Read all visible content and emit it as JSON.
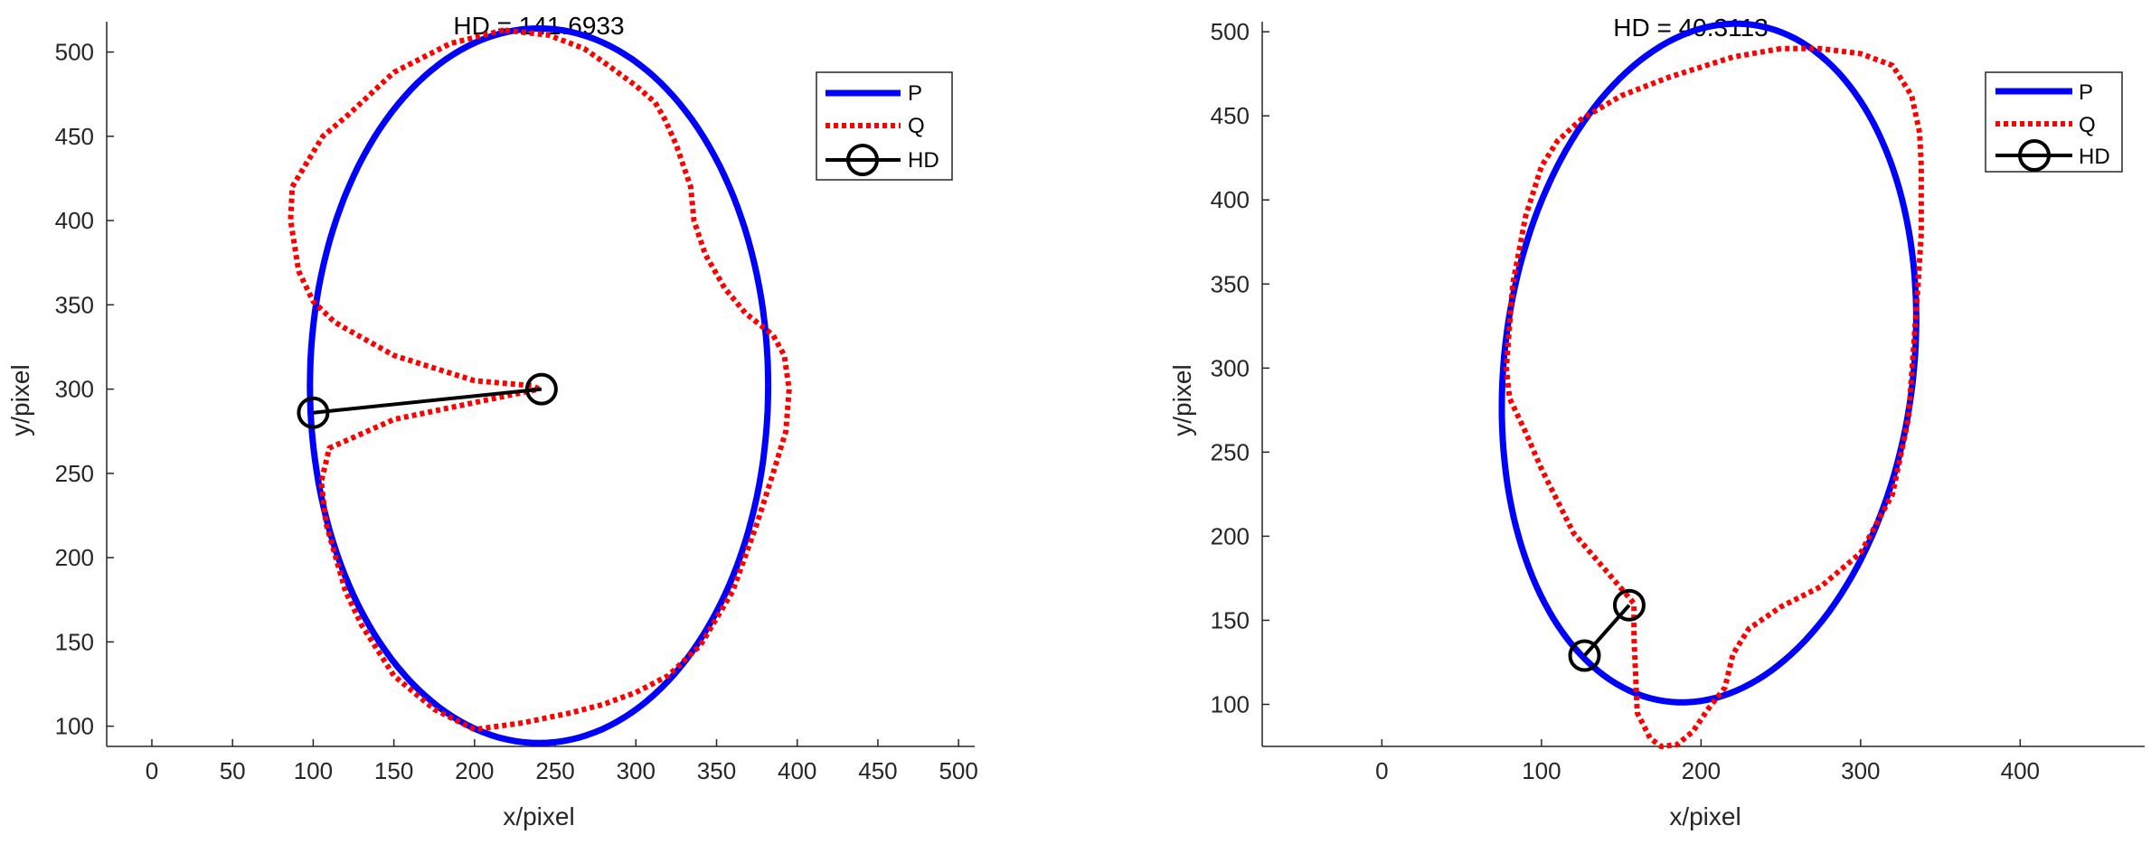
{
  "colors": {
    "P": "#0000ff",
    "Q": "#ff0000",
    "HD": "#000000",
    "axis": "#262626"
  },
  "chart_data": [
    {
      "type": "line",
      "title": "HD = 141.6933",
      "xlabel": "x/pixel",
      "ylabel": "y/pixel",
      "xlim": [
        -28,
        510
      ],
      "ylim": [
        88,
        518
      ],
      "xticks": [
        0,
        50,
        100,
        150,
        200,
        250,
        300,
        350,
        400,
        450,
        500
      ],
      "yticks": [
        100,
        150,
        200,
        250,
        300,
        350,
        400,
        450,
        500
      ],
      "legend": {
        "position": "top-right",
        "entries": [
          "P",
          "Q",
          "HD"
        ]
      },
      "series": [
        {
          "name": "P",
          "style": "solid",
          "ellipse": {
            "cx": 240,
            "cy": 302,
            "rx": 142,
            "ry": 212,
            "rotation_deg": 0
          }
        },
        {
          "name": "Q",
          "style": "dotted",
          "x": [
            218,
            185,
            150,
            122,
            106,
            87,
            86,
            91,
            100,
            113,
            120,
            150,
            200,
            236,
            240,
            200,
            150,
            110,
            105,
            108,
            120,
            130,
            150,
            175,
            200,
            230,
            260,
            280,
            300,
            320,
            340,
            360,
            375,
            385,
            393,
            395,
            392,
            385,
            368,
            355,
            343,
            336,
            334,
            325,
            318,
            312,
            300,
            283,
            268,
            246,
            218
          ],
          "y": [
            513,
            505,
            488,
            463,
            450,
            420,
            400,
            370,
            352,
            340,
            336,
            320,
            305,
            302,
            300,
            292,
            282,
            265,
            245,
            220,
            180,
            160,
            130,
            110,
            98,
            102,
            108,
            113,
            120,
            130,
            148,
            180,
            220,
            250,
            275,
            300,
            320,
            332,
            345,
            360,
            380,
            400,
            420,
            445,
            460,
            470,
            480,
            492,
            502,
            510,
            513
          ]
        },
        {
          "name": "HD",
          "style": "solid-marker",
          "x": [
            100,
            241.5
          ],
          "y": [
            286,
            300
          ]
        }
      ]
    },
    {
      "type": "line",
      "title": "HD = 40.3113",
      "xlabel": "x/pixel",
      "ylabel": "y/pixel",
      "xlim": [
        -75,
        478
      ],
      "ylim": [
        75,
        506
      ],
      "xticks": [
        0,
        100,
        200,
        300,
        400
      ],
      "yticks": [
        100,
        150,
        200,
        250,
        300,
        350,
        400,
        450,
        500
      ],
      "legend": {
        "position": "top-right",
        "entries": [
          "P",
          "Q",
          "HD"
        ]
      },
      "series": [
        {
          "name": "P",
          "style": "solid",
          "ellipse": {
            "cx": 205,
            "cy": 303,
            "rx": 128,
            "ry": 203,
            "rotation_deg": -8
          }
        },
        {
          "name": "Q",
          "style": "dotted",
          "x": [
            250,
            220,
            180,
            150,
            125,
            110,
            100,
            90,
            82,
            78,
            80,
            90,
            100,
            120,
            140,
            158,
            158,
            160,
            168,
            175,
            185,
            195,
            205,
            215,
            220,
            230,
            250,
            275,
            300,
            320,
            330,
            333,
            336,
            338,
            338,
            337,
            332,
            320,
            300,
            275,
            250
          ],
          "y": [
            490,
            485,
            473,
            462,
            448,
            435,
            420,
            390,
            350,
            300,
            282,
            262,
            240,
            202,
            180,
            160,
            140,
            95,
            80,
            75,
            76,
            84,
            98,
            110,
            130,
            145,
            158,
            170,
            190,
            225,
            270,
            310,
            350,
            380,
            420,
            440,
            462,
            480,
            487,
            490,
            490
          ]
        },
        {
          "name": "HD",
          "style": "solid-marker",
          "x": [
            127,
            155
          ],
          "y": [
            129,
            159
          ]
        }
      ]
    }
  ]
}
